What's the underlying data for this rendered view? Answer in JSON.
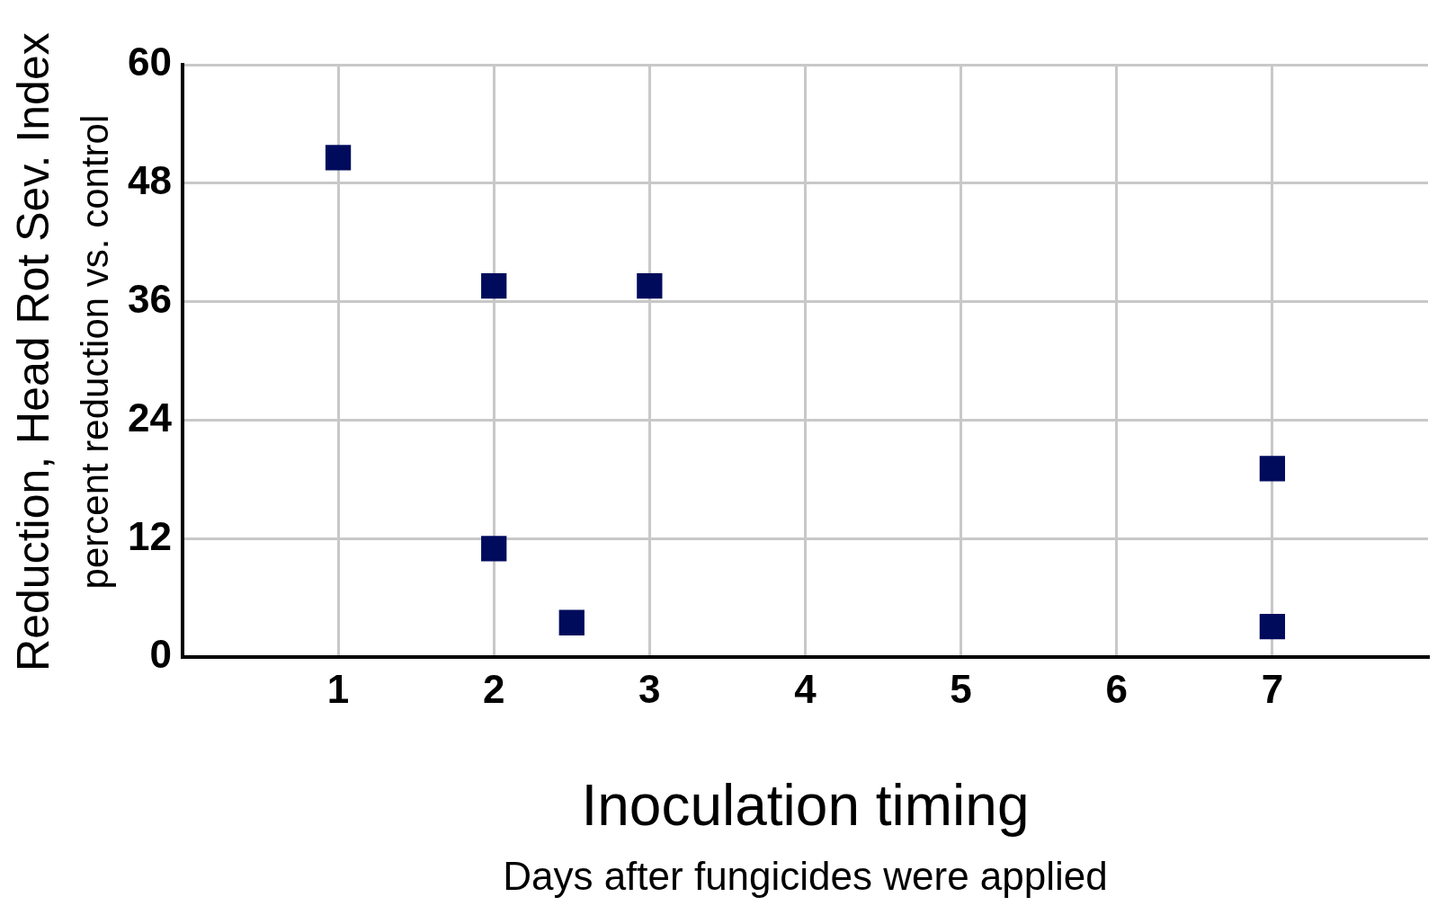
{
  "chart_data": {
    "type": "scatter",
    "xlabel": "Inoculation timing\nDays after fungicides were applied",
    "ylabel": "Reduction, Head Rot Sev. Index\npercent reduction vs. control",
    "x": [
      1,
      2,
      3,
      2,
      2.5,
      7,
      7
    ],
    "values": [
      50.6,
      37.6,
      37.6,
      11,
      3.5,
      19.1,
      3.1
    ],
    "color": "#000b5c",
    "marker": "square",
    "xlim": [
      0,
      8
    ],
    "xticks": [
      1,
      2,
      3,
      4,
      5,
      6,
      7
    ],
    "ylim": [
      0,
      60
    ],
    "yticks": [
      0,
      12,
      24,
      36,
      48,
      60
    ],
    "grid": true,
    "legend": false
  }
}
